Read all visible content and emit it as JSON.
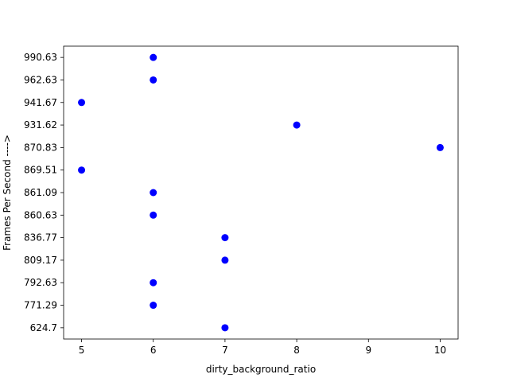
{
  "chart_data": {
    "type": "scatter",
    "title": "",
    "xlabel": "dirty_background_ratio",
    "ylabel": "Frames Per Second  ---->",
    "x_ticks": [
      5,
      6,
      7,
      8,
      9,
      10
    ],
    "xlim": [
      4.75,
      10.25
    ],
    "y_axis_kind": "categorical",
    "y_categories": [
      "624.7",
      "771.29",
      "792.63",
      "809.17",
      "836.77",
      "860.63",
      "861.09",
      "869.51",
      "870.83",
      "931.62",
      "941.67",
      "962.63",
      "990.63"
    ],
    "points": [
      {
        "x": 6,
        "y": "990.63"
      },
      {
        "x": 6,
        "y": "962.63"
      },
      {
        "x": 5,
        "y": "941.67"
      },
      {
        "x": 8,
        "y": "931.62"
      },
      {
        "x": 10,
        "y": "870.83"
      },
      {
        "x": 5,
        "y": "869.51"
      },
      {
        "x": 6,
        "y": "861.09"
      },
      {
        "x": 6,
        "y": "860.63"
      },
      {
        "x": 7,
        "y": "836.77"
      },
      {
        "x": 7,
        "y": "809.17"
      },
      {
        "x": 6,
        "y": "792.63"
      },
      {
        "x": 6,
        "y": "771.29"
      },
      {
        "x": 7,
        "y": "624.7"
      }
    ],
    "marker_color": "#0000ff",
    "grid": false,
    "legend": "none"
  }
}
